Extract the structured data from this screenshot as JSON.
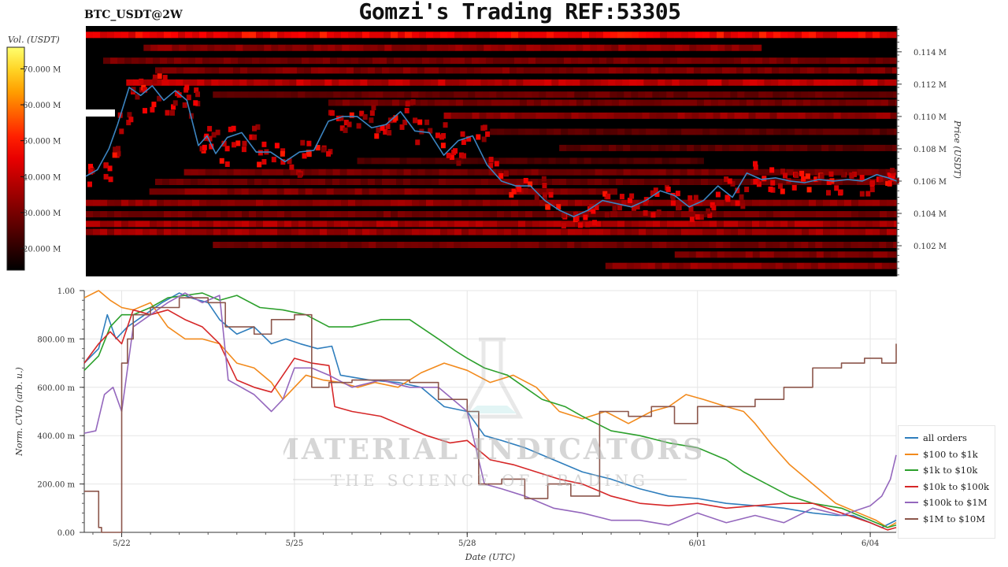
{
  "header": {
    "title": "Gomzi's Trading REF:53305",
    "symbol": "BTC_USDT@2W"
  },
  "colors": {
    "price_line": "#3b84c1",
    "heatmap_background": "#000000",
    "heatmap_high": "#ffff66",
    "grid": "#e6e6e6"
  },
  "watermark": {
    "brand": "MATERIAL INDICATORS",
    "tagline": "THE SCIENCE OF TRADING",
    "icon": "flask-icon"
  },
  "chart_data": [
    {
      "type": "heatmap",
      "title": "",
      "ylabel": "Price (USDT)",
      "yticks": [
        "0.102 M",
        "0.104 M",
        "0.106 M",
        "0.108 M",
        "0.110 M",
        "0.112 M",
        "0.114 M"
      ],
      "yrange": [
        100100,
        115600
      ],
      "xrange": [
        21.3,
        35.35
      ],
      "colorbar": {
        "label": "Vol. (USDT)",
        "ticks": [
          "70.000 M",
          "60.000 M",
          "50.000 M",
          "40.000 M",
          "30.000 M",
          "20.000 M"
        ],
        "range": [
          14000000,
          76000000
        ]
      },
      "liquidity_bands": [
        {
          "price": 115000,
          "intensity": 0.92,
          "x_start": 21.3,
          "x_end": 35.35
        },
        {
          "price": 114200,
          "intensity": 0.55,
          "x_start": 22.3,
          "x_end": 33.0
        },
        {
          "price": 113400,
          "intensity": 0.45,
          "x_start": 21.6,
          "x_end": 35.35
        },
        {
          "price": 112800,
          "intensity": 0.5,
          "x_start": 22.5,
          "x_end": 35.35
        },
        {
          "price": 112050,
          "intensity": 0.72,
          "x_start": 22.0,
          "x_end": 35.35
        },
        {
          "price": 111300,
          "intensity": 0.4,
          "x_start": 23.5,
          "x_end": 35.35
        },
        {
          "price": 110800,
          "intensity": 0.45,
          "x_start": 25.5,
          "x_end": 35.35
        },
        {
          "price": 110000,
          "intensity": 0.55,
          "x_start": 27.5,
          "x_end": 35.35
        },
        {
          "price": 109000,
          "intensity": 0.35,
          "x_start": 28.3,
          "x_end": 35.35
        },
        {
          "price": 108000,
          "intensity": 0.35,
          "x_start": 29.5,
          "x_end": 35.35
        },
        {
          "price": 107200,
          "intensity": 0.3,
          "x_start": 26.0,
          "x_end": 32.0
        },
        {
          "price": 106500,
          "intensity": 0.45,
          "x_start": 23.0,
          "x_end": 35.35
        },
        {
          "price": 105900,
          "intensity": 0.4,
          "x_start": 22.5,
          "x_end": 35.35
        },
        {
          "price": 105300,
          "intensity": 0.5,
          "x_start": 22.4,
          "x_end": 30.5
        },
        {
          "price": 104600,
          "intensity": 0.55,
          "x_start": 21.3,
          "x_end": 35.35
        },
        {
          "price": 103900,
          "intensity": 0.45,
          "x_start": 21.3,
          "x_end": 35.35
        },
        {
          "price": 103300,
          "intensity": 0.65,
          "x_start": 21.3,
          "x_end": 35.35
        },
        {
          "price": 102800,
          "intensity": 0.6,
          "x_start": 21.3,
          "x_end": 35.35
        },
        {
          "price": 102000,
          "intensity": 0.45,
          "x_start": 23.5,
          "x_end": 35.35
        },
        {
          "price": 101400,
          "intensity": 0.5,
          "x_start": 31.5,
          "x_end": 35.35
        },
        {
          "price": 100700,
          "intensity": 0.55,
          "x_start": 30.3,
          "x_end": 35.35
        }
      ],
      "price_series": {
        "name": "",
        "x": [
          21.3,
          21.5,
          21.7,
          21.85,
          22.05,
          22.25,
          22.45,
          22.65,
          22.85,
          23.05,
          23.25,
          23.4,
          23.55,
          23.75,
          24.0,
          24.25,
          24.5,
          24.75,
          25.0,
          25.25,
          25.5,
          25.75,
          26.0,
          26.25,
          26.5,
          26.75,
          27.0,
          27.25,
          27.5,
          27.75,
          28.0,
          28.25,
          28.5,
          28.75,
          29.0,
          29.25,
          29.5,
          29.75,
          30.0,
          30.25,
          30.5,
          30.75,
          31.0,
          31.25,
          31.5,
          31.75,
          32.0,
          32.25,
          32.5,
          32.75,
          33.0,
          33.25,
          33.5,
          33.75,
          34.0,
          34.25,
          34.5,
          34.75,
          35.0,
          35.2,
          35.35
        ],
        "y": [
          106300,
          106700,
          108000,
          109500,
          111800,
          111300,
          111900,
          111000,
          111600,
          111000,
          108200,
          108800,
          107700,
          108700,
          109000,
          107800,
          107800,
          107200,
          107800,
          107900,
          109700,
          110000,
          110000,
          109300,
          109500,
          110300,
          109100,
          109000,
          107600,
          108500,
          108800,
          107000,
          106000,
          105700,
          105700,
          104800,
          104200,
          103800,
          104200,
          104800,
          104600,
          104400,
          104800,
          105400,
          105100,
          104400,
          104800,
          105700,
          105000,
          106500,
          106100,
          106200,
          106000,
          105900,
          106100,
          106000,
          106100,
          106000,
          106400,
          106200,
          106000
        ]
      }
    },
    {
      "type": "line",
      "title": "",
      "xlabel": "Date (UTC)",
      "ylabel": "Norm. CVD (arb. u.)",
      "xticks": [
        {
          "x": 22,
          "label": "5/22"
        },
        {
          "x": 25,
          "label": "5/25"
        },
        {
          "x": 28,
          "label": "5/28"
        },
        {
          "x": 32,
          "label": "6/01"
        },
        {
          "x": 35,
          "label": "6/04"
        }
      ],
      "yticks": [
        "0.00",
        "200.00 m",
        "400.00 m",
        "600.00 m",
        "800.00 m",
        "1.00"
      ],
      "xlim": [
        21.35,
        35.45
      ],
      "ylim": [
        0,
        1
      ],
      "legend": "right",
      "series": [
        {
          "name": "all orders",
          "color": "#2f7ebd",
          "x": [
            21.35,
            21.6,
            21.75,
            21.9,
            22.1,
            22.4,
            22.7,
            23.0,
            23.2,
            23.5,
            23.7,
            24.0,
            24.3,
            24.6,
            24.85,
            25.1,
            25.4,
            25.65,
            25.8,
            26.3,
            26.8,
            27.2,
            27.6,
            28.0,
            28.3,
            28.6,
            29.0,
            29.5,
            30.0,
            30.5,
            31.0,
            31.5,
            32.0,
            32.5,
            33.0,
            33.5,
            34.0,
            34.4,
            34.7,
            35.0,
            35.2,
            35.45
          ],
          "y": [
            0.7,
            0.76,
            0.9,
            0.8,
            0.85,
            0.9,
            0.95,
            0.99,
            0.97,
            0.95,
            0.88,
            0.82,
            0.85,
            0.78,
            0.8,
            0.78,
            0.76,
            0.77,
            0.65,
            0.63,
            0.62,
            0.6,
            0.52,
            0.5,
            0.4,
            0.38,
            0.35,
            0.3,
            0.25,
            0.22,
            0.18,
            0.15,
            0.14,
            0.12,
            0.11,
            0.1,
            0.08,
            0.07,
            0.07,
            0.04,
            0.02,
            0.05
          ]
        },
        {
          "name": "$100 to $1k",
          "color": "#f28a1c",
          "x": [
            21.35,
            21.6,
            21.8,
            22.0,
            22.2,
            22.5,
            22.8,
            23.1,
            23.4,
            23.7,
            24.0,
            24.3,
            24.6,
            24.8,
            25.0,
            25.2,
            25.5,
            25.8,
            26.1,
            26.4,
            26.8,
            27.2,
            27.6,
            28.0,
            28.4,
            28.8,
            29.2,
            29.6,
            30.0,
            30.4,
            30.8,
            31.2,
            31.5,
            31.8,
            32.1,
            32.5,
            32.8,
            33.0,
            33.3,
            33.6,
            34.0,
            34.4,
            34.8,
            35.1,
            35.3,
            35.45
          ],
          "y": [
            0.97,
            1.0,
            0.96,
            0.93,
            0.92,
            0.95,
            0.85,
            0.8,
            0.8,
            0.78,
            0.7,
            0.68,
            0.62,
            0.55,
            0.6,
            0.65,
            0.63,
            0.62,
            0.6,
            0.62,
            0.6,
            0.66,
            0.7,
            0.67,
            0.62,
            0.65,
            0.6,
            0.5,
            0.47,
            0.5,
            0.45,
            0.5,
            0.52,
            0.57,
            0.55,
            0.52,
            0.5,
            0.45,
            0.36,
            0.28,
            0.2,
            0.12,
            0.08,
            0.05,
            0.02,
            0.04
          ]
        },
        {
          "name": "$1k to $10k",
          "color": "#2ca02c",
          "x": [
            21.35,
            21.6,
            21.8,
            22.0,
            22.2,
            22.5,
            22.8,
            23.1,
            23.4,
            23.7,
            24.0,
            24.4,
            24.8,
            25.2,
            25.6,
            26.0,
            26.5,
            27.0,
            27.5,
            27.8,
            28.0,
            28.3,
            28.7,
            29.0,
            29.3,
            29.7,
            30.0,
            30.5,
            31.0,
            31.5,
            32.0,
            32.5,
            32.8,
            33.2,
            33.6,
            34.0,
            34.5,
            35.0,
            35.3,
            35.45
          ],
          "y": [
            0.67,
            0.73,
            0.85,
            0.9,
            0.9,
            0.93,
            0.97,
            0.98,
            0.99,
            0.96,
            0.98,
            0.93,
            0.92,
            0.9,
            0.85,
            0.85,
            0.88,
            0.88,
            0.8,
            0.75,
            0.72,
            0.68,
            0.65,
            0.6,
            0.55,
            0.52,
            0.48,
            0.42,
            0.4,
            0.37,
            0.35,
            0.3,
            0.25,
            0.2,
            0.15,
            0.12,
            0.1,
            0.05,
            0.02,
            0.03
          ]
        },
        {
          "name": "$10k to $100k",
          "color": "#d62728",
          "x": [
            21.35,
            21.6,
            21.8,
            22.0,
            22.2,
            22.5,
            22.8,
            23.1,
            23.4,
            23.7,
            24.0,
            24.3,
            24.6,
            25.0,
            25.3,
            25.6,
            25.7,
            26.0,
            26.5,
            27.0,
            27.3,
            27.7,
            28.0,
            28.4,
            28.8,
            29.2,
            29.6,
            30.0,
            30.5,
            31.0,
            31.5,
            32.0,
            32.5,
            33.0,
            33.5,
            34.0,
            34.5,
            35.0,
            35.3,
            35.45
          ],
          "y": [
            0.7,
            0.78,
            0.83,
            0.78,
            0.92,
            0.9,
            0.92,
            0.88,
            0.85,
            0.78,
            0.63,
            0.6,
            0.58,
            0.72,
            0.7,
            0.69,
            0.52,
            0.5,
            0.48,
            0.43,
            0.4,
            0.37,
            0.38,
            0.3,
            0.28,
            0.25,
            0.22,
            0.2,
            0.15,
            0.12,
            0.11,
            0.12,
            0.1,
            0.11,
            0.12,
            0.12,
            0.08,
            0.04,
            0.01,
            0.02
          ]
        },
        {
          "name": "$100k to $1M",
          "color": "#9467bd",
          "x": [
            21.35,
            21.55,
            21.7,
            21.85,
            22.0,
            22.2,
            22.5,
            22.8,
            23.1,
            23.4,
            23.7,
            23.85,
            24.0,
            24.3,
            24.6,
            24.8,
            25.0,
            25.3,
            25.6,
            26.0,
            26.5,
            27.0,
            27.5,
            28.0,
            28.3,
            28.6,
            29.0,
            29.5,
            30.0,
            30.5,
            31.0,
            31.5,
            32.0,
            32.5,
            33.0,
            33.5,
            34.0,
            34.5,
            35.0,
            35.2,
            35.35,
            35.45
          ],
          "y": [
            0.41,
            0.42,
            0.57,
            0.6,
            0.5,
            0.85,
            0.9,
            0.95,
            0.99,
            0.95,
            0.98,
            0.63,
            0.61,
            0.57,
            0.5,
            0.55,
            0.68,
            0.68,
            0.65,
            0.6,
            0.63,
            0.6,
            0.6,
            0.5,
            0.2,
            0.18,
            0.15,
            0.1,
            0.08,
            0.05,
            0.05,
            0.03,
            0.08,
            0.04,
            0.07,
            0.04,
            0.1,
            0.07,
            0.11,
            0.15,
            0.22,
            0.32
          ]
        },
        {
          "name": "$1M to $10M",
          "color": "#8c564b",
          "step": true,
          "x": [
            21.35,
            21.6,
            21.65,
            21.75,
            21.9,
            22.0,
            22.1,
            22.2,
            22.5,
            23.0,
            23.5,
            23.8,
            24.3,
            24.6,
            25.0,
            25.3,
            25.6,
            26.0,
            26.5,
            27.0,
            27.5,
            28.0,
            28.2,
            28.6,
            29.0,
            29.4,
            29.8,
            30.3,
            30.8,
            31.2,
            31.6,
            32.0,
            32.5,
            33.0,
            33.5,
            34.0,
            34.5,
            34.9,
            35.2,
            35.45
          ],
          "y": [
            0.17,
            0.02,
            0.0,
            0.0,
            0.0,
            0.7,
            0.8,
            0.9,
            0.93,
            0.97,
            0.95,
            0.85,
            0.82,
            0.88,
            0.9,
            0.6,
            0.62,
            0.63,
            0.63,
            0.62,
            0.55,
            0.5,
            0.2,
            0.22,
            0.14,
            0.2,
            0.15,
            0.5,
            0.48,
            0.52,
            0.45,
            0.52,
            0.52,
            0.55,
            0.6,
            0.68,
            0.7,
            0.72,
            0.7,
            0.78
          ]
        }
      ]
    }
  ]
}
